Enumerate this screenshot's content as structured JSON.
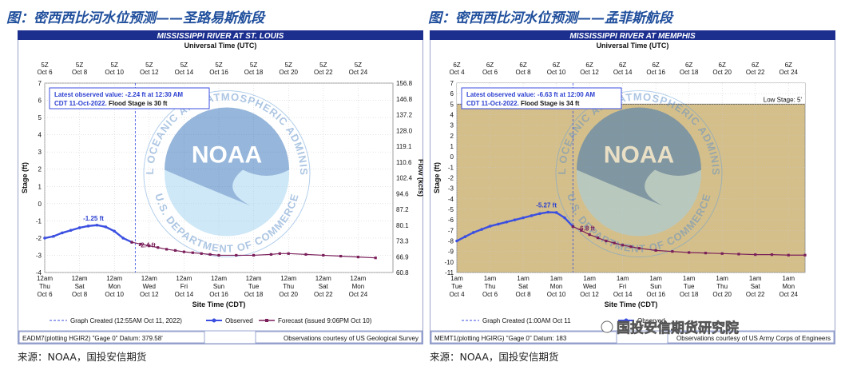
{
  "panels": [
    {
      "heading": "图：密西西比河水位预测——圣路易斯航段",
      "source": "来源：NOAA，国投安信期货",
      "watermark": "",
      "chart_data": {
        "type": "line",
        "title": "MISSISSIPPI RIVER AT ST. LOUIS",
        "top_axis_title": "Universal Time (UTC)",
        "bottom_axis_title": "Site Time (CDT)",
        "ylabel": "Stage (ft)",
        "y2label": "Flow (kcfs)",
        "ylim": [
          -4,
          7
        ],
        "ytick_step": 1,
        "y2_ticks": [
          "156.8",
          "146.8",
          "137.2",
          "128.0",
          "119.1",
          "110.6",
          "102.4",
          "94.6",
          "87.2",
          "80.1",
          "73.3",
          "66.9",
          "60.8"
        ],
        "xlim": [
          0,
          20
        ],
        "top_ticks": [
          {
            "x": 0,
            "l1": "5Z",
            "l2": "Oct 6"
          },
          {
            "x": 2,
            "l1": "5Z",
            "l2": "Oct 8"
          },
          {
            "x": 4,
            "l1": "5Z",
            "l2": "Oct 10"
          },
          {
            "x": 6,
            "l1": "5Z",
            "l2": "Oct 12"
          },
          {
            "x": 8,
            "l1": "5Z",
            "l2": "Oct 14"
          },
          {
            "x": 10,
            "l1": "5Z",
            "l2": "Oct 16"
          },
          {
            "x": 12,
            "l1": "5Z",
            "l2": "Oct 18"
          },
          {
            "x": 14,
            "l1": "5Z",
            "l2": "Oct 20"
          },
          {
            "x": 16,
            "l1": "5Z",
            "l2": "Oct 22"
          },
          {
            "x": 18,
            "l1": "5Z",
            "l2": "Oct 24"
          }
        ],
        "bottom_ticks": [
          {
            "x": 0,
            "l1": "12am",
            "l2": "Thu",
            "l3": "Oct 6"
          },
          {
            "x": 2,
            "l1": "12am",
            "l2": "Sat",
            "l3": "Oct 8"
          },
          {
            "x": 4,
            "l1": "12am",
            "l2": "Mon",
            "l3": "Oct 10"
          },
          {
            "x": 6,
            "l1": "12am",
            "l2": "Wed",
            "l3": "Oct 12"
          },
          {
            "x": 8,
            "l1": "12am",
            "l2": "Fri",
            "l3": "Oct 14"
          },
          {
            "x": 10,
            "l1": "12am",
            "l2": "Sun",
            "l3": "Oct 16"
          },
          {
            "x": 12,
            "l1": "12am",
            "l2": "Tue",
            "l3": "Oct 18"
          },
          {
            "x": 14,
            "l1": "12am",
            "l2": "Thu",
            "l3": "Oct 20"
          },
          {
            "x": 16,
            "l1": "12am",
            "l2": "Sat",
            "l3": "Oct 22"
          },
          {
            "x": 18,
            "l1": "12am",
            "l2": "Mon",
            "l3": "Oct 24"
          }
        ],
        "background": "#ffffff",
        "low_stage": null,
        "low_stage_label": "",
        "observed": {
          "name": "Observed",
          "color": "#3b4fe0",
          "x": [
            0,
            0.5,
            1,
            1.5,
            2,
            2.5,
            3,
            3.5,
            4,
            4.5,
            5
          ],
          "y": [
            -2.0,
            -1.9,
            -1.7,
            -1.55,
            -1.4,
            -1.3,
            -1.25,
            -1.35,
            -1.6,
            -2.0,
            -2.24
          ]
        },
        "forecast": {
          "name": "Forecast (issued 9:06PM Oct 10)",
          "color": "#7a1f5a",
          "x": [
            5,
            5.5,
            6,
            6.5,
            7,
            7.5,
            8,
            8.5,
            9,
            9.5,
            10,
            11,
            12,
            13,
            13.5,
            14,
            15,
            16,
            17,
            18,
            19
          ],
          "y": [
            -2.24,
            -2.35,
            -2.45,
            -2.55,
            -2.65,
            -2.72,
            -2.8,
            -2.85,
            -2.9,
            -2.95,
            -3.0,
            -3.0,
            -3.0,
            -2.95,
            -2.9,
            -2.9,
            -2.95,
            -3.0,
            -3.05,
            -3.1,
            -3.15
          ]
        },
        "created_x": 5.2,
        "created_legend": "Graph Created (12:55AM Oct 11, 2022)",
        "peak_label": {
          "x": 2.8,
          "y": -1.25,
          "text": "-1.25 ft"
        },
        "forecast_label": {
          "x": 5.3,
          "y": -2.4,
          "text": "-2.4 ft"
        },
        "infobox_line1": "Latest observed value: -2.24 ft at 12:30 AM",
        "infobox_line2a": "CDT 11-Oct-2022.",
        "infobox_line2b": "Flood Stage is 30 ft",
        "footer_left": "EADM7(plotting HGIR2) \"Gage 0\" Datum: 379.58'",
        "footer_right": "Observations courtesy of US Geological Survey"
      }
    },
    {
      "heading": "图：密西西比河水位预测——孟菲斯航段",
      "source": "来源：NOAA，国投安信期货",
      "watermark": "国投安信期货研究院",
      "chart_data": {
        "type": "line",
        "title": "MISSISSIPPI RIVER AT MEMPHIS",
        "top_axis_title": "Universal Time (UTC)",
        "bottom_axis_title": "Site Time (CDT)",
        "ylabel": "Stage (ft)",
        "y2label": "",
        "ylim": [
          -11,
          7
        ],
        "ytick_step": 1,
        "y2_ticks": [],
        "xlim": [
          0,
          21
        ],
        "top_ticks": [
          {
            "x": 0,
            "l1": "6Z",
            "l2": "Oct 4"
          },
          {
            "x": 2,
            "l1": "6Z",
            "l2": "Oct 6"
          },
          {
            "x": 4,
            "l1": "6Z",
            "l2": "Oct 8"
          },
          {
            "x": 6,
            "l1": "6Z",
            "l2": "Oct 10"
          },
          {
            "x": 8,
            "l1": "6Z",
            "l2": "Oct 12"
          },
          {
            "x": 10,
            "l1": "6Z",
            "l2": "Oct 14"
          },
          {
            "x": 12,
            "l1": "6Z",
            "l2": "Oct 16"
          },
          {
            "x": 14,
            "l1": "6Z",
            "l2": "Oct 18"
          },
          {
            "x": 16,
            "l1": "6Z",
            "l2": "Oct 20"
          },
          {
            "x": 18,
            "l1": "6Z",
            "l2": "Oct 22"
          },
          {
            "x": 20,
            "l1": "6Z",
            "l2": "Oct 24"
          }
        ],
        "bottom_ticks": [
          {
            "x": 0,
            "l1": "1am",
            "l2": "Tue",
            "l3": "Oct 4"
          },
          {
            "x": 2,
            "l1": "1am",
            "l2": "Thu",
            "l3": "Oct 6"
          },
          {
            "x": 4,
            "l1": "1am",
            "l2": "Sat",
            "l3": "Oct 8"
          },
          {
            "x": 6,
            "l1": "1am",
            "l2": "Mon",
            "l3": "Oct 10"
          },
          {
            "x": 8,
            "l1": "1am",
            "l2": "Wed",
            "l3": "Oct 12"
          },
          {
            "x": 10,
            "l1": "1am",
            "l2": "Fri",
            "l3": "Oct 14"
          },
          {
            "x": 12,
            "l1": "1am",
            "l2": "Sun",
            "l3": "Oct 16"
          },
          {
            "x": 14,
            "l1": "1am",
            "l2": "Tue",
            "l3": "Oct 18"
          },
          {
            "x": 16,
            "l1": "1am",
            "l2": "Thu",
            "l3": "Oct 20"
          },
          {
            "x": 18,
            "l1": "1am",
            "l2": "Sat",
            "l3": "Oct 22"
          },
          {
            "x": 20,
            "l1": "1am",
            "l2": "Mon",
            "l3": "Oct 24"
          }
        ],
        "background": "#d4bf8a",
        "low_stage": 5,
        "low_stage_label": "Low Stage: 5'",
        "observed": {
          "name": "Observed",
          "color": "#3b4fe0",
          "x": [
            0,
            0.5,
            1,
            1.5,
            2,
            2.5,
            3,
            3.5,
            4,
            4.5,
            5,
            5.5,
            6,
            6.5,
            7
          ],
          "y": [
            -8.0,
            -7.6,
            -7.2,
            -6.9,
            -6.6,
            -6.4,
            -6.2,
            -6.0,
            -5.8,
            -5.6,
            -5.4,
            -5.27,
            -5.3,
            -5.8,
            -6.63
          ]
        },
        "forecast": {
          "name": "Forecast",
          "color": "#7a1f5a",
          "x": [
            7,
            7.5,
            8,
            8.5,
            9,
            9.5,
            10,
            10.5,
            11,
            12,
            13,
            14,
            15,
            16,
            17,
            18,
            19,
            20,
            21
          ],
          "y": [
            -6.63,
            -7.0,
            -7.4,
            -7.7,
            -8.0,
            -8.2,
            -8.4,
            -8.55,
            -8.7,
            -8.9,
            -9.0,
            -9.1,
            -9.15,
            -9.2,
            -9.25,
            -9.3,
            -9.3,
            -9.35,
            -9.35
          ]
        },
        "created_x": 7.0,
        "created_legend": "Graph Created (1:00AM Oct 11",
        "peak_label": {
          "x": 5.4,
          "y": -5.27,
          "text": "-5.27 ft"
        },
        "forecast_label": {
          "x": 7.2,
          "y": -6.8,
          "text": "-6.8 ft"
        },
        "infobox_line1": "Latest observed value: -6.63 ft at 12:00 AM",
        "infobox_line2a": "CDT 11-Oct-2022.",
        "infobox_line2b": "Flood Stage is 34 ft",
        "footer_left": "MEMT1(plotting HGIRG) \"Gage 0\" Datum: 183",
        "footer_right": "Observations courtesy of US Army Corps of Engineers"
      }
    }
  ],
  "shared": {
    "noaa_text": "NOAA",
    "ring_top": "NATIONAL OCEANIC AND ATMOSPHERIC ADMINISTRATION",
    "ring_bottom": "U.S. DEPARTMENT OF COMMERCE"
  }
}
